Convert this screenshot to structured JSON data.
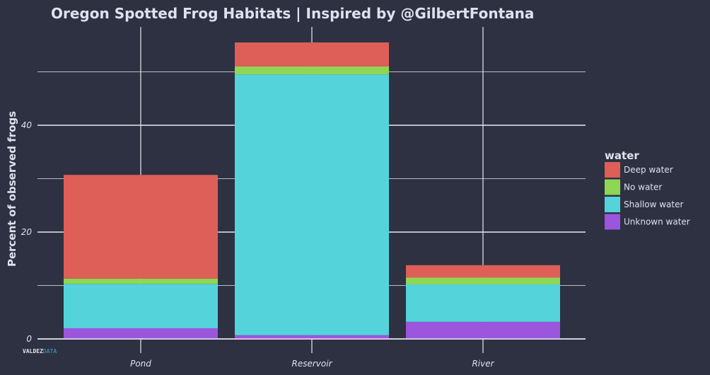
{
  "chart_data": {
    "type": "bar",
    "stacked": true,
    "title": "Oregon Spotted Frog Habitats | Inspired by @GilbertFontana",
    "xlabel": "",
    "ylabel": "Percent of observed frogs",
    "categories": [
      "Pond",
      "Reservoir",
      "River"
    ],
    "ylim": [
      0,
      58
    ],
    "yticks": [
      0,
      20,
      40
    ],
    "y_tick_labels": [
      "0",
      "20",
      "40"
    ],
    "grid": true,
    "legend_title": "water",
    "legend_position": "right",
    "series": [
      {
        "name": "Unknown water",
        "color": "#9c55dd",
        "values": [
          2.0,
          0.7,
          3.2
        ]
      },
      {
        "name": "Shallow water",
        "color": "#55d3db",
        "values": [
          8.3,
          48.8,
          7.0
        ]
      },
      {
        "name": "No water",
        "color": "#8fd654",
        "values": [
          1.0,
          1.5,
          1.3
        ]
      },
      {
        "name": "Deep water",
        "color": "#dd5f58",
        "values": [
          19.4,
          4.5,
          2.3
        ]
      }
    ],
    "legend_order": [
      "Deep water",
      "No water",
      "Shallow water",
      "Unknown water"
    ]
  },
  "watermark": {
    "part1": "VALDEZ",
    "part2": "DATA"
  },
  "colors": {
    "background": "#2d3142",
    "grid": "#e8e8ee",
    "text": "#dde3ee"
  }
}
